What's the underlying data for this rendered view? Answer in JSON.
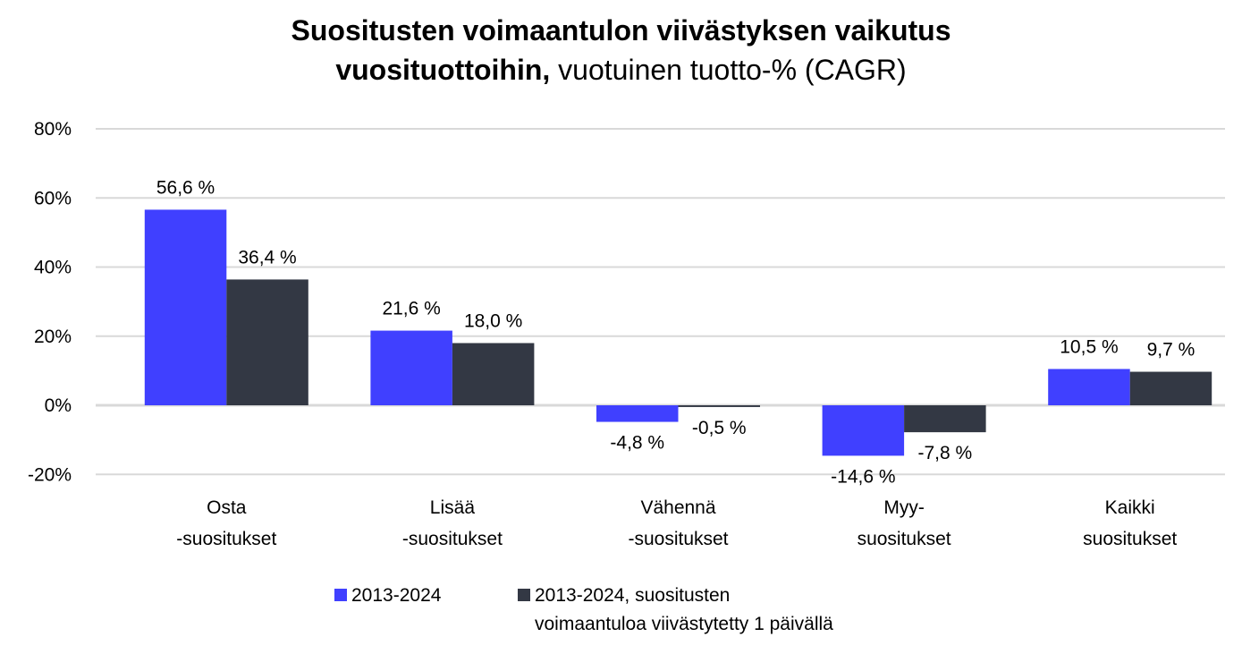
{
  "title": {
    "bold": "Suositusten voimaantulon viivästyksen vaikutus",
    "bold_line2": "vuosituottoihin,",
    "light_line2": " vuotuinen tuotto-% (CAGR)"
  },
  "colors": {
    "series1": "#4040ff",
    "series2": "#333844",
    "grid": "#d9d9d9"
  },
  "chart_data": {
    "type": "bar",
    "title": "Suositusten voimaantulon viivästyksen vaikutus vuosituottoihin, vuotuinen tuotto-% (CAGR)",
    "xlabel": "",
    "ylabel": "",
    "ylim": [
      -20,
      80
    ],
    "yticks": [
      -20,
      0,
      20,
      40,
      60,
      80
    ],
    "ytick_labels": [
      "-20%",
      "0%",
      "20%",
      "40%",
      "60%",
      "80%"
    ],
    "grid": true,
    "legend_position": "bottom",
    "categories": [
      [
        "Osta",
        "-suositukset"
      ],
      [
        "Lisää",
        "-suositukset"
      ],
      [
        "Vähennä",
        "-suositukset"
      ],
      [
        "Myy-",
        "suositukset"
      ],
      [
        "Kaikki",
        "suositukset"
      ]
    ],
    "series": [
      {
        "name": "2013-2024",
        "values": [
          56.6,
          21.6,
          -4.8,
          -14.6,
          10.5
        ],
        "labels": [
          "56,6 %",
          "21,6 %",
          "-4,8 %",
          "-14,6 %",
          "10,5 %"
        ]
      },
      {
        "name": "2013-2024, suositusten voimaantuloa viivästytetty 1 päivällä",
        "values": [
          36.4,
          18.0,
          -0.5,
          -7.8,
          9.7
        ],
        "labels": [
          "36,4 %",
          "18,0 %",
          "-0,5 %",
          "-7,8 %",
          "9,7 %"
        ]
      }
    ]
  },
  "legend": {
    "items": [
      {
        "label_lines": [
          "2013-2024"
        ]
      },
      {
        "label_lines": [
          "2013-2024, suositusten",
          "voimaantuloa viivästytetty 1 päivällä"
        ]
      }
    ]
  }
}
